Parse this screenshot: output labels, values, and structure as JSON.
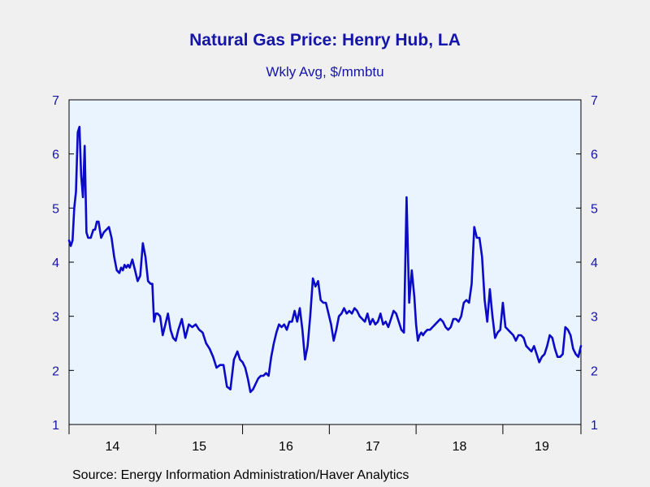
{
  "title": "Natural Gas Price: Henry Hub, LA",
  "subtitle": "Wkly Avg, $/mmbtu",
  "source": "Source:  Energy Information Administration/Haver Analytics",
  "colors": {
    "line": "#0a0ac8",
    "plot_bg": "#eaf4ff",
    "text": "#1515a8",
    "background": "#f0f0f0"
  },
  "chart_data": {
    "type": "line",
    "title": "Natural Gas Price: Henry Hub, LA",
    "subtitle": "Wkly Avg, $/mmbtu",
    "ylim": [
      1,
      7
    ],
    "yticks": [
      1,
      2,
      3,
      4,
      5,
      6,
      7
    ],
    "y_axis_sides": [
      "left",
      "right"
    ],
    "xlim": [
      2014.0,
      2019.9
    ],
    "x_tick_labels": [
      {
        "label": "14",
        "year": 2014
      },
      {
        "label": "15",
        "year": 2015
      },
      {
        "label": "16",
        "year": 2016
      },
      {
        "label": "17",
        "year": 2017
      },
      {
        "label": "18",
        "year": 2018
      },
      {
        "label": "19",
        "year": 2019
      }
    ],
    "grid": false,
    "series": [
      {
        "x": [
          2014.0,
          2014.02,
          2014.04,
          2014.06,
          2014.08,
          2014.1,
          2014.12,
          2014.14,
          2014.16,
          2014.18,
          2014.2,
          2014.22,
          2014.25,
          2014.28,
          2014.3,
          2014.32,
          2014.34,
          2014.37,
          2014.4,
          2014.43,
          2014.46,
          2014.49,
          2014.52,
          2014.55,
          2014.58,
          2014.6,
          2014.62,
          2014.64,
          2014.66,
          2014.68,
          2014.7,
          2014.73,
          2014.76,
          2014.79,
          2014.82,
          2014.85,
          2014.88,
          2014.91,
          2014.94,
          2014.96,
          2014.98,
          2015.0,
          2015.02,
          2015.05,
          2015.08,
          2015.11,
          2015.14,
          2015.17,
          2015.2,
          2015.23,
          2015.26,
          2015.3,
          2015.34,
          2015.38,
          2015.42,
          2015.46,
          2015.5,
          2015.54,
          2015.58,
          2015.62,
          2015.66,
          2015.7,
          2015.74,
          2015.78,
          2015.82,
          2015.86,
          2015.9,
          2015.94,
          2015.97,
          2016.0,
          2016.03,
          2016.06,
          2016.09,
          2016.12,
          2016.15,
          2016.18,
          2016.21,
          2016.24,
          2016.27,
          2016.3,
          2016.33,
          2016.36,
          2016.39,
          2016.42,
          2016.45,
          2016.48,
          2016.51,
          2016.54,
          2016.57,
          2016.6,
          2016.63,
          2016.66,
          2016.69,
          2016.72,
          2016.75,
          2016.78,
          2016.81,
          2016.84,
          2016.87,
          2016.9,
          2016.93,
          2016.96,
          2016.99,
          2017.02,
          2017.05,
          2017.08,
          2017.11,
          2017.14,
          2017.17,
          2017.2,
          2017.23,
          2017.26,
          2017.29,
          2017.32,
          2017.35,
          2017.38,
          2017.41,
          2017.44,
          2017.47,
          2017.5,
          2017.53,
          2017.56,
          2017.59,
          2017.62,
          2017.65,
          2017.68,
          2017.71,
          2017.74,
          2017.77,
          2017.8,
          2017.83,
          2017.86,
          2017.89,
          2017.92,
          2017.95,
          2017.98,
          2018.0,
          2018.02,
          2018.04,
          2018.06,
          2018.08,
          2018.1,
          2018.13,
          2018.16,
          2018.19,
          2018.22,
          2018.25,
          2018.28,
          2018.31,
          2018.34,
          2018.37,
          2018.4,
          2018.43,
          2018.46,
          2018.49,
          2018.52,
          2018.55,
          2018.58,
          2018.61,
          2018.64,
          2018.67,
          2018.7,
          2018.73,
          2018.76,
          2018.79,
          2018.82,
          2018.85,
          2018.88,
          2018.91,
          2018.94,
          2018.97,
          2019.0,
          2019.03,
          2019.06,
          2019.09,
          2019.12,
          2019.15,
          2019.18,
          2019.21,
          2019.24,
          2019.27,
          2019.3,
          2019.33,
          2019.36,
          2019.39,
          2019.42,
          2019.45,
          2019.48,
          2019.51,
          2019.54,
          2019.57,
          2019.6,
          2019.63,
          2019.66,
          2019.69,
          2019.72,
          2019.75,
          2019.78,
          2019.81,
          2019.84,
          2019.87,
          2019.9
        ],
        "values": [
          4.4,
          4.3,
          4.4,
          5.0,
          5.3,
          6.4,
          6.5,
          5.6,
          5.2,
          6.15,
          4.55,
          4.45,
          4.45,
          4.6,
          4.6,
          4.75,
          4.75,
          4.45,
          4.55,
          4.6,
          4.65,
          4.45,
          4.1,
          3.85,
          3.8,
          3.9,
          3.85,
          3.95,
          3.9,
          3.95,
          3.9,
          4.05,
          3.85,
          3.65,
          3.75,
          4.35,
          4.1,
          3.65,
          3.6,
          3.6,
          2.9,
          3.05,
          3.05,
          3.0,
          2.65,
          2.85,
          3.05,
          2.75,
          2.6,
          2.55,
          2.75,
          2.95,
          2.6,
          2.85,
          2.8,
          2.85,
          2.75,
          2.7,
          2.5,
          2.4,
          2.25,
          2.05,
          2.1,
          2.1,
          1.7,
          1.65,
          2.2,
          2.35,
          2.2,
          2.15,
          2.05,
          1.85,
          1.6,
          1.65,
          1.75,
          1.85,
          1.9,
          1.9,
          1.95,
          1.9,
          2.25,
          2.5,
          2.7,
          2.85,
          2.8,
          2.85,
          2.75,
          2.9,
          2.9,
          3.1,
          2.9,
          3.15,
          2.75,
          2.2,
          2.45,
          3.0,
          3.7,
          3.55,
          3.65,
          3.3,
          3.25,
          3.25,
          3.05,
          2.85,
          2.55,
          2.75,
          3.0,
          3.05,
          3.15,
          3.05,
          3.1,
          3.05,
          3.15,
          3.1,
          3.0,
          2.95,
          2.9,
          3.05,
          2.85,
          2.95,
          2.85,
          2.9,
          3.05,
          2.85,
          2.9,
          2.8,
          2.95,
          3.1,
          3.05,
          2.9,
          2.75,
          2.7,
          5.2,
          3.25,
          3.85,
          3.35,
          2.85,
          2.55,
          2.65,
          2.7,
          2.65,
          2.7,
          2.75,
          2.75,
          2.8,
          2.85,
          2.9,
          2.95,
          2.9,
          2.8,
          2.75,
          2.8,
          2.95,
          2.95,
          2.9,
          3.0,
          3.25,
          3.3,
          3.25,
          3.6,
          4.65,
          4.45,
          4.45,
          4.1,
          3.3,
          2.9,
          3.5,
          3.0,
          2.6,
          2.7,
          2.75,
          3.25,
          2.8,
          2.75,
          2.7,
          2.65,
          2.55,
          2.65,
          2.65,
          2.6,
          2.45,
          2.4,
          2.35,
          2.45,
          2.3,
          2.15,
          2.25,
          2.3,
          2.45,
          2.65,
          2.6,
          2.4,
          2.25,
          2.25,
          2.3,
          2.8,
          2.75,
          2.65,
          2.4,
          2.3,
          2.25,
          2.45
        ]
      }
    ]
  }
}
